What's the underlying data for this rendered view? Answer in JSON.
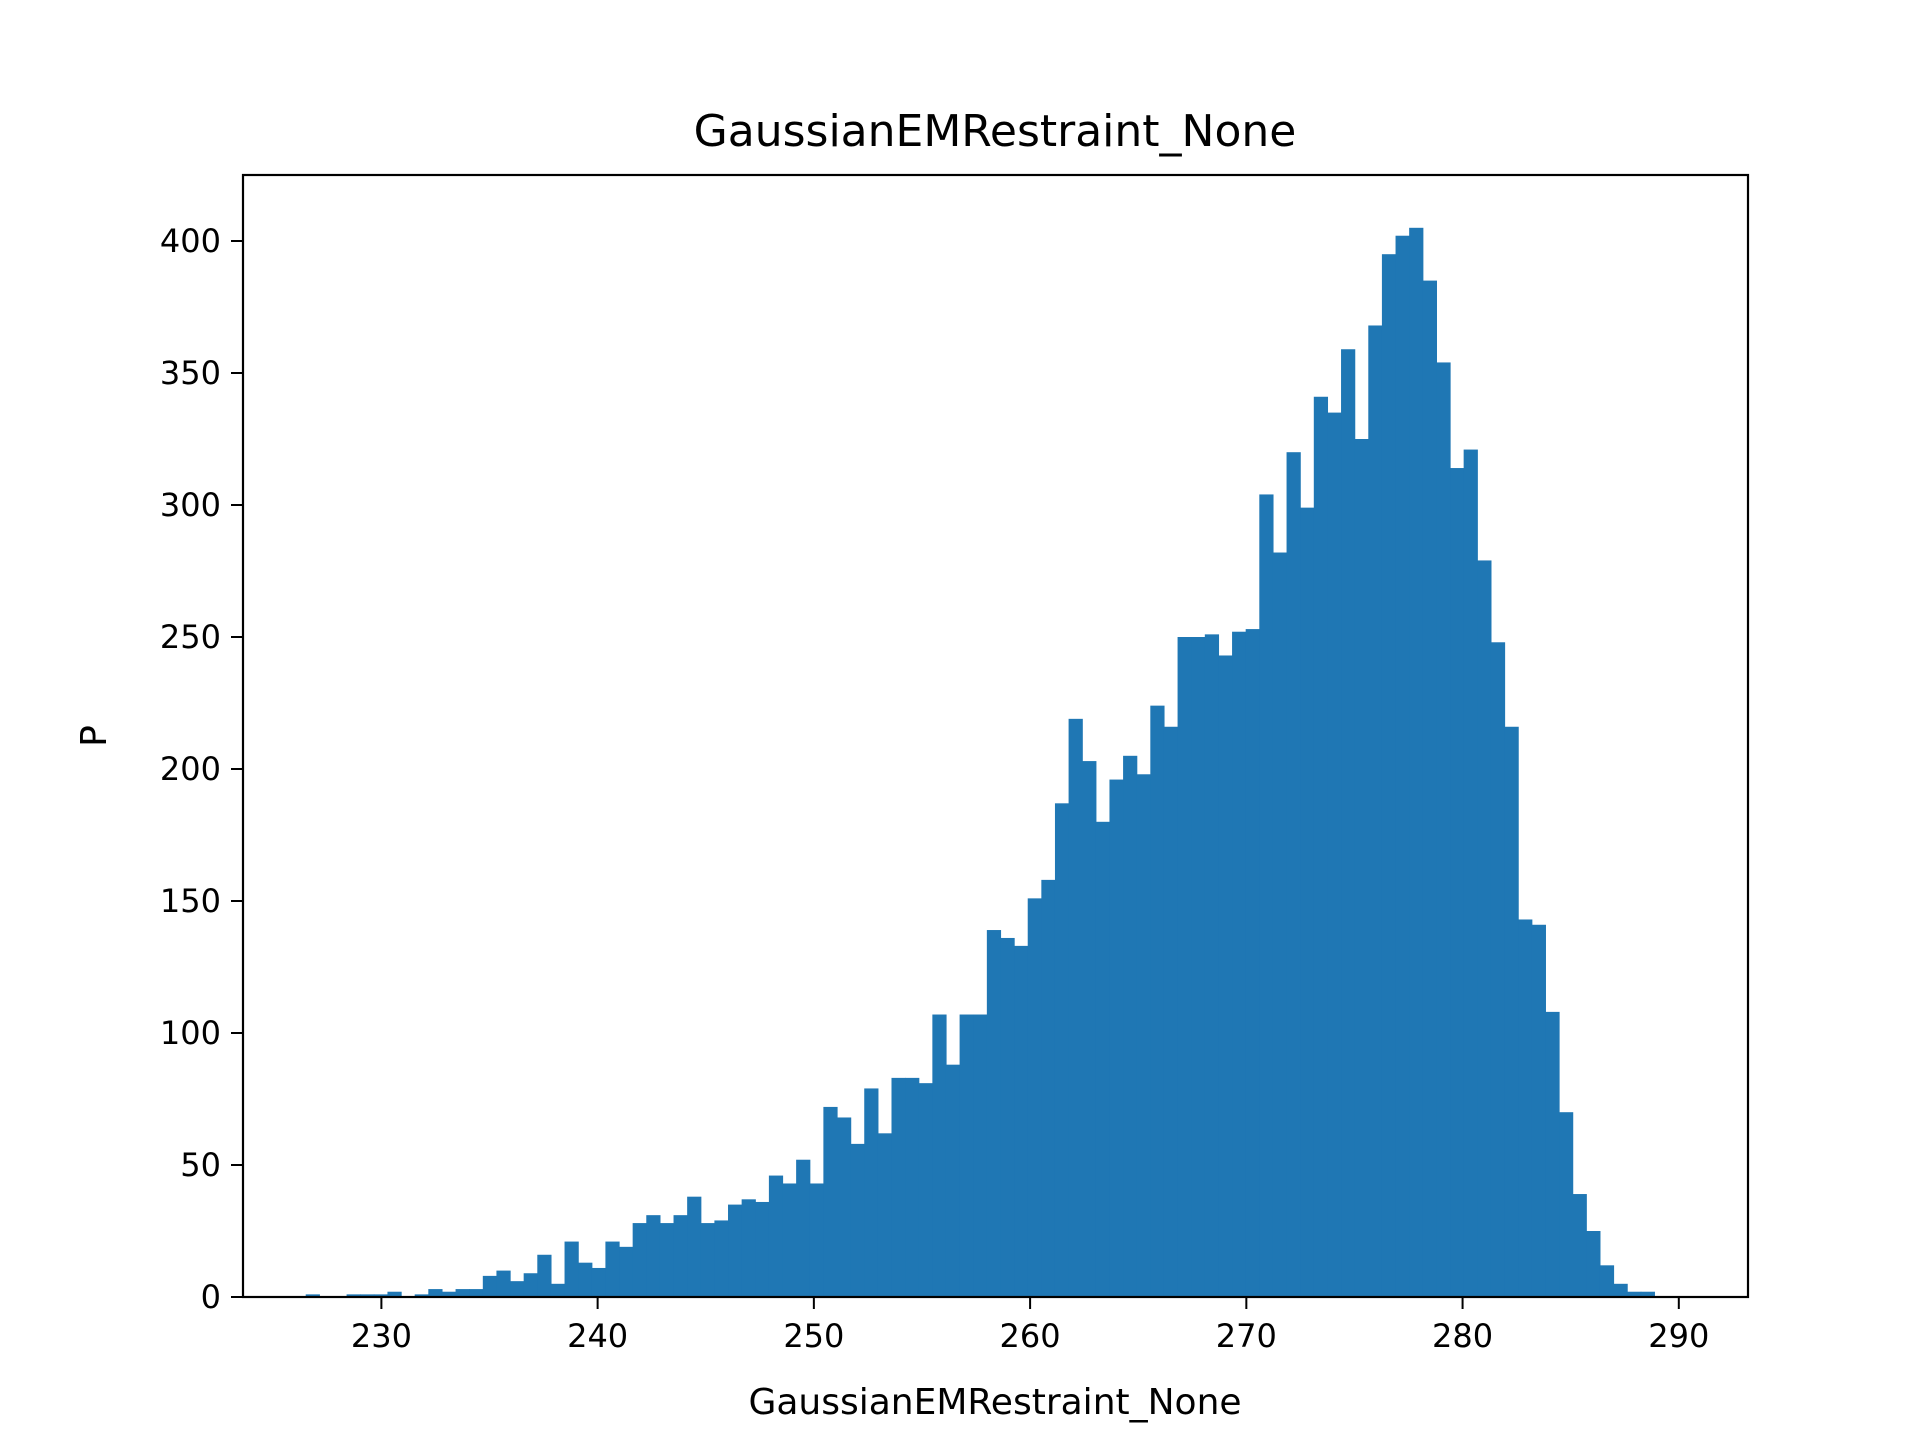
{
  "chart_data": {
    "type": "bar",
    "title": "GaussianEMRestraint_None",
    "xlabel": "GaussianEMRestraint_None",
    "ylabel": "P",
    "xlim": [
      223.6,
      293.2
    ],
    "ylim": [
      0,
      425
    ],
    "xticks": [
      "230",
      "240",
      "250",
      "260",
      "270",
      "280",
      "290"
    ],
    "yticks": [
      "0",
      "50",
      "100",
      "150",
      "200",
      "250",
      "300",
      "350",
      "400"
    ],
    "bar_color": "#1f77b4",
    "bin_start": 226.5,
    "bin_width": 0.63,
    "values": [
      1,
      0,
      0,
      1,
      1,
      1,
      2,
      0,
      1,
      3,
      2,
      3,
      3,
      8,
      10,
      6,
      9,
      16,
      5,
      21,
      13,
      11,
      21,
      19,
      28,
      31,
      28,
      31,
      38,
      28,
      29,
      35,
      37,
      36,
      46,
      43,
      52,
      43,
      72,
      68,
      58,
      79,
      62,
      83,
      83,
      81,
      107,
      88,
      107,
      107,
      139,
      136,
      133,
      151,
      158,
      187,
      219,
      203,
      180,
      196,
      205,
      198,
      224,
      216,
      250,
      250,
      251,
      243,
      252,
      253,
      304,
      282,
      320,
      299,
      341,
      335,
      359,
      325,
      368,
      395,
      402,
      405,
      385,
      354,
      314,
      321,
      279,
      248,
      216,
      143,
      141,
      108,
      70,
      39,
      25,
      12,
      5,
      2,
      2
    ]
  }
}
